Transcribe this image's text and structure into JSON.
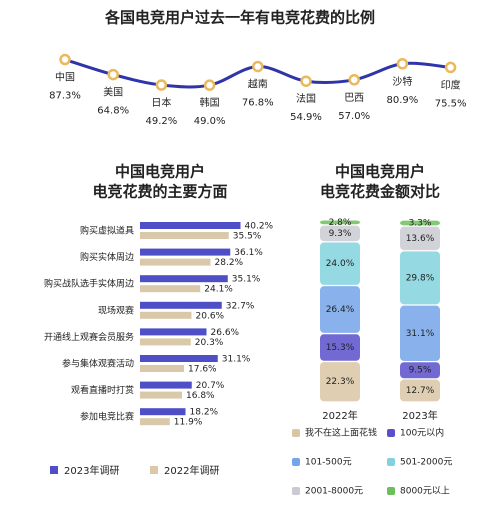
{
  "chart_data": [
    {
      "type": "line",
      "title": "各国电竞用户过去一年有电竞花费的比例",
      "categories": [
        "中国",
        "美国",
        "日本",
        "韩国",
        "越南",
        "法国",
        "巴西",
        "沙特",
        "印度"
      ],
      "values": [
        87.3,
        64.8,
        49.2,
        49.0,
        76.8,
        54.9,
        57.0,
        80.9,
        75.5
      ],
      "value_labels": [
        "87.3%",
        "64.8%",
        "49.2%",
        "49.0%",
        "76.8%",
        "54.9%",
        "57.0%",
        "80.9%",
        "75.5%"
      ],
      "color": "#2f35a8",
      "marker_color": "#e9b95c"
    },
    {
      "type": "hbar",
      "title": [
        "中国电竞用户",
        "电竞花费的主要方面"
      ],
      "categories": [
        "购买虚拟道具",
        "购买实体周边",
        "购买战队选手实体周边",
        "现场观赛",
        "开通线上观赛会员服务",
        "参与集体观赛活动",
        "观看直播时打赏",
        "参加电竞比赛"
      ],
      "series": [
        {
          "name": "2023年调研",
          "color": "#4e4fc6",
          "values": [
            40.2,
            36.1,
            35.1,
            32.7,
            26.6,
            31.1,
            20.7,
            18.2
          ],
          "value_labels": [
            "40.2%",
            "36.1%",
            "35.1%",
            "32.7%",
            "26.6%",
            "31.1%",
            "20.7%",
            "18.2%"
          ]
        },
        {
          "name": "2022年调研",
          "color": "#d9c8aa",
          "values": [
            35.5,
            28.2,
            24.1,
            20.6,
            20.3,
            17.6,
            16.8,
            11.9
          ],
          "value_labels": [
            "35.5%",
            "28.2%",
            "24.1%",
            "20.6%",
            "20.3%",
            "17.6%",
            "16.8%",
            "11.9%"
          ]
        }
      ]
    },
    {
      "type": "stacked",
      "title": [
        "中国电竞用户",
        "电竞花费金额对比"
      ],
      "categories": [
        "2022年",
        "2023年"
      ],
      "series": [
        {
          "name": "我不在这上面花钱",
          "color": "#d9c6a5",
          "values": [
            22.3,
            12.7
          ],
          "value_labels": [
            "22.3%",
            "12.7%"
          ]
        },
        {
          "name": "100元以内",
          "color": "#5a4fcb",
          "values": [
            15.3,
            9.5
          ],
          "value_labels": [
            "15.3%",
            "9.5%"
          ]
        },
        {
          "name": "101-500元",
          "color": "#74a4ea",
          "values": [
            26.4,
            31.1
          ],
          "value_labels": [
            "26.4%",
            "31.1%"
          ]
        },
        {
          "name": "501-2000元",
          "color": "#82d2de",
          "values": [
            24.0,
            29.8
          ],
          "value_labels": [
            "24.0%",
            "29.8%"
          ]
        },
        {
          "name": "2001-8000元",
          "color": "#cacad2",
          "values": [
            9.3,
            13.6
          ],
          "value_labels": [
            "9.3%",
            "13.6%"
          ]
        },
        {
          "name": "8000元以上",
          "color": "#6cbf5a",
          "values": [
            2.8,
            3.3
          ],
          "value_labels": [
            "2.8%",
            "3.3%"
          ]
        }
      ]
    }
  ]
}
